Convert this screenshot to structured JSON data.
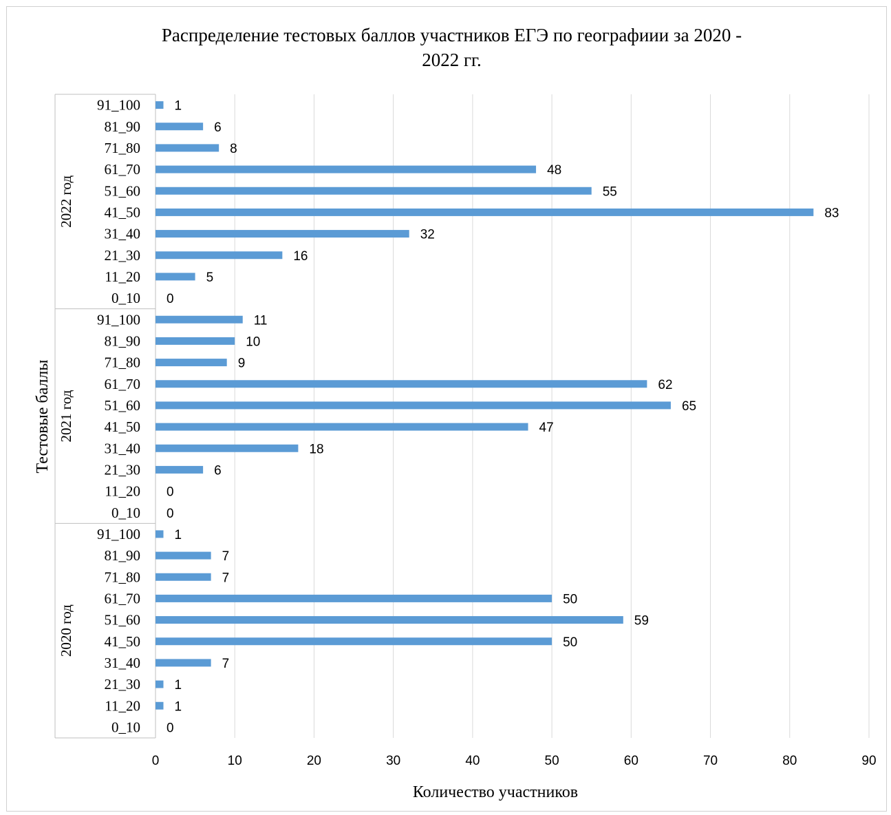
{
  "chart_data": {
    "type": "bar",
    "orientation": "horizontal",
    "title": "Распределение тестовых баллов участников ЕГЭ по географиии за 2020 - 2022 гг.",
    "title_lines": [
      "Распределение тестовых баллов участников ЕГЭ по географиии за 2020 -",
      "2022 гг."
    ],
    "xlabel": "Количество участников",
    "ylabel": "Тестовые баллы",
    "xlim": [
      0,
      90
    ],
    "x_ticks": [
      0,
      10,
      20,
      30,
      40,
      50,
      60,
      70,
      80,
      90
    ],
    "grid": true,
    "legend": "none",
    "bar_color": "#5b9bd5",
    "categories": [
      "0_10",
      "11_20",
      "21_30",
      "31_40",
      "41_50",
      "51_60",
      "61_70",
      "71_80",
      "81_90",
      "91_100"
    ],
    "groups": [
      {
        "name": "2022 год",
        "values": [
          0,
          5,
          16,
          32,
          83,
          55,
          48,
          8,
          6,
          1
        ]
      },
      {
        "name": "2021 год",
        "values": [
          0,
          0,
          6,
          18,
          47,
          65,
          62,
          9,
          10,
          11
        ]
      },
      {
        "name": "2020 год",
        "values": [
          0,
          1,
          1,
          7,
          50,
          59,
          50,
          7,
          7,
          1
        ]
      }
    ]
  }
}
